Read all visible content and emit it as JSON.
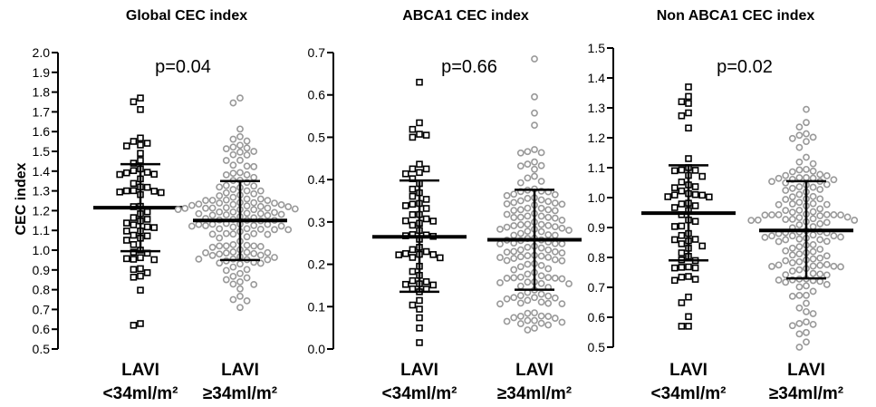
{
  "chart_data": [
    {
      "type": "scatter",
      "title": "Global CEC index",
      "ylabel": "CEC index",
      "annotation": "p=0.04",
      "ylim": [
        0.5,
        2.0
      ],
      "yticks": [
        "0.5",
        "0.6",
        "0.7",
        "0.8",
        "0.9",
        "1.0",
        "1.1",
        "1.2",
        "1.3",
        "1.4",
        "1.5",
        "1.6",
        "1.7",
        "1.8",
        "1.9",
        "2.0"
      ],
      "categories": [
        {
          "line1": "LAVI",
          "line2": "<34ml/m²"
        },
        {
          "line1": "LAVI",
          "line2": "≥34ml/m²"
        }
      ],
      "series": [
        {
          "marker": "square",
          "color": "#000000",
          "n": 60,
          "mean": 1.215,
          "sd_low": 0.995,
          "sd_high": 1.435,
          "min": 0.62,
          "max": 1.77
        },
        {
          "marker": "circle",
          "color": "#999999",
          "n": 150,
          "mean": 1.15,
          "sd_low": 0.95,
          "sd_high": 1.35,
          "min": 0.71,
          "max": 1.77
        }
      ]
    },
    {
      "type": "scatter",
      "title": "ABCA1 CEC index",
      "ylabel": "",
      "annotation": "p=0.66",
      "ylim": [
        0.0,
        0.7
      ],
      "yticks": [
        "0.0",
        "0.1",
        "0.2",
        "0.3",
        "0.4",
        "0.5",
        "0.6",
        "0.7"
      ],
      "categories": [
        {
          "line1": "LAVI",
          "line2": "<34ml/m²"
        },
        {
          "line1": "LAVI",
          "line2": "≥34ml/m²"
        }
      ],
      "series": [
        {
          "marker": "square",
          "color": "#000000",
          "n": 60,
          "mean": 0.265,
          "sd_low": 0.135,
          "sd_high": 0.398,
          "min": 0.015,
          "max": 0.63
        },
        {
          "marker": "circle",
          "color": "#999999",
          "n": 150,
          "mean": 0.258,
          "sd_low": 0.14,
          "sd_high": 0.376,
          "min": 0.045,
          "max": 0.685
        }
      ]
    },
    {
      "type": "scatter",
      "title": "Non ABCA1 CEC index",
      "ylabel": "",
      "annotation": "p=0.02",
      "ylim": [
        0.5,
        1.5
      ],
      "yticks": [
        "0.5",
        "0.6",
        "0.7",
        "0.8",
        "0.9",
        "1.0",
        "1.1",
        "1.2",
        "1.3",
        "1.4",
        "1.5"
      ],
      "categories": [
        {
          "line1": "LAVI",
          "line2": "<34ml/m²"
        },
        {
          "line1": "LAVI",
          "line2": "≥34ml/m²"
        }
      ],
      "series": [
        {
          "marker": "square",
          "color": "#000000",
          "n": 60,
          "mean": 0.948,
          "sd_low": 0.79,
          "sd_high": 1.108,
          "min": 0.57,
          "max": 1.37
        },
        {
          "marker": "circle",
          "color": "#999999",
          "n": 150,
          "mean": 0.89,
          "sd_low": 0.73,
          "sd_high": 1.055,
          "min": 0.5,
          "max": 1.295
        }
      ]
    }
  ]
}
